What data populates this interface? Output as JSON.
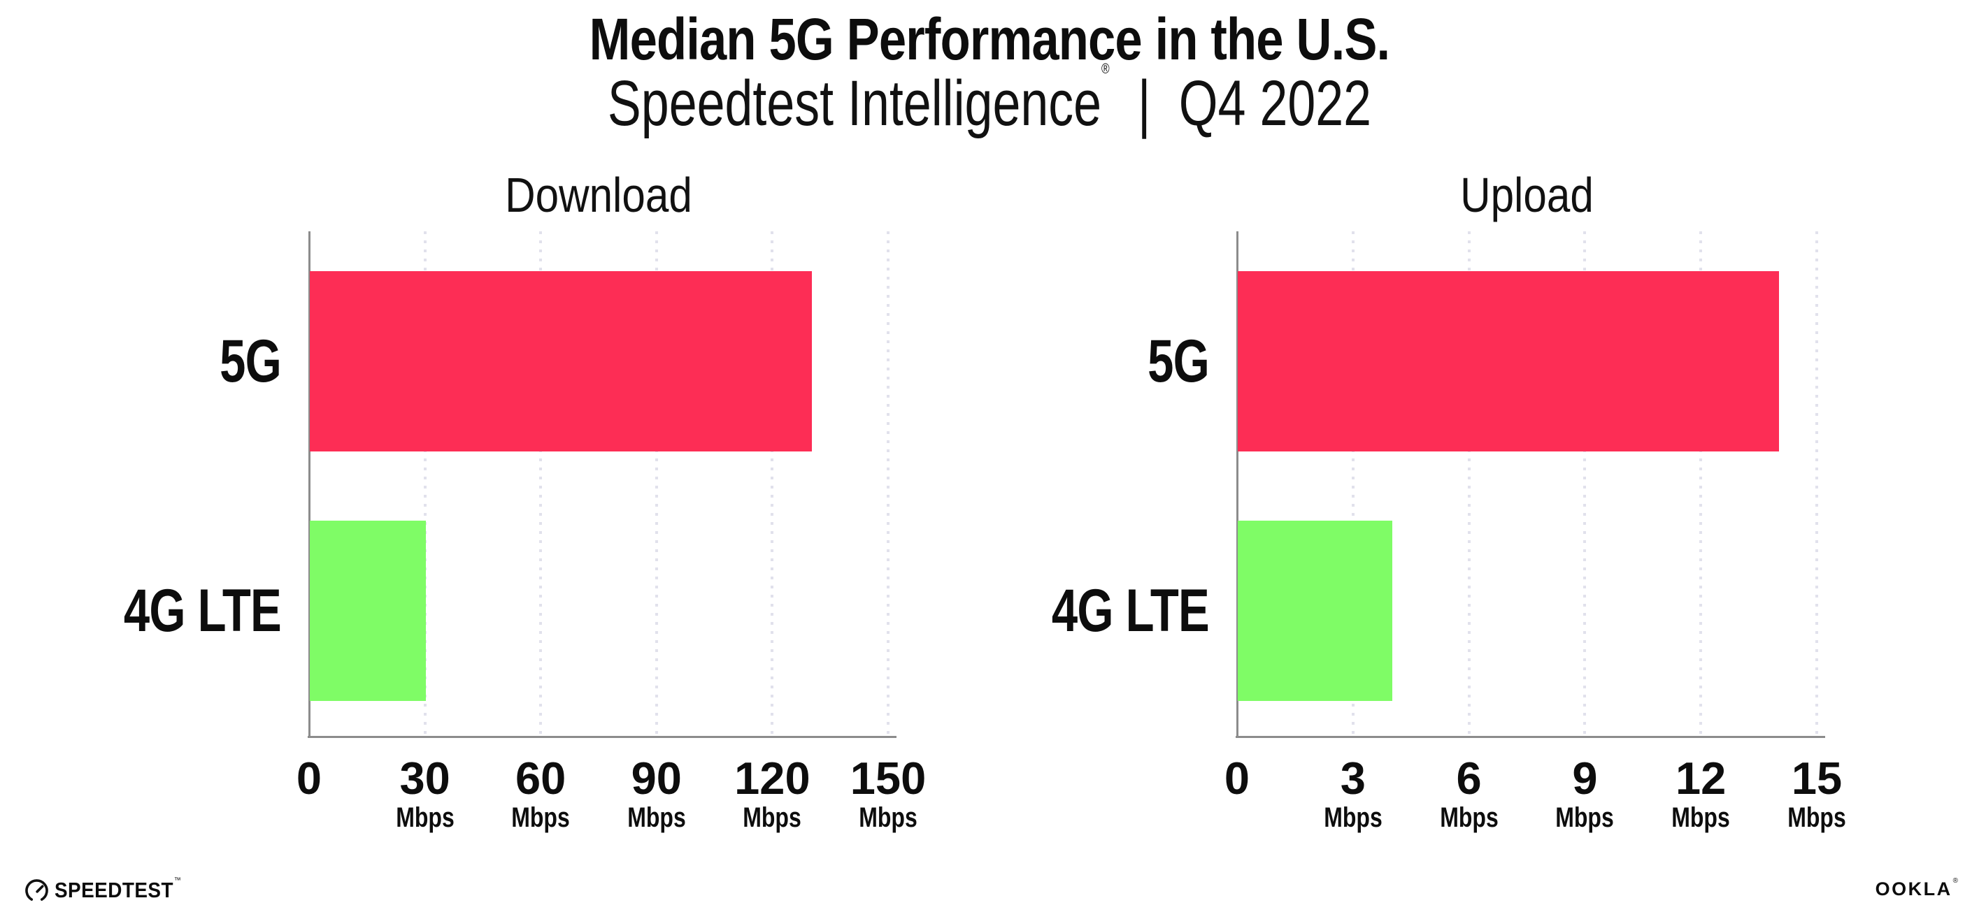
{
  "header": {
    "title": "Median 5G Performance in the U.S.",
    "subtitle": {
      "brand": "Speedtest Intelligence",
      "registered_mark": "®",
      "separator": "|",
      "period": "Q4 2022"
    }
  },
  "chart_data": [
    {
      "type": "bar",
      "orientation": "horizontal",
      "title": "Download",
      "categories": [
        "5G",
        "4G LTE"
      ],
      "values": [
        130,
        30
      ],
      "unit": "Mbps",
      "xlim": [
        0,
        150
      ],
      "xticks": [
        0,
        30,
        60,
        90,
        120,
        150
      ],
      "bar_colors": [
        "#fd2d55",
        "#7ffc66"
      ],
      "grid": "dotted-vertical-at-ticks",
      "legend": "none"
    },
    {
      "type": "bar",
      "orientation": "horizontal",
      "title": "Upload",
      "categories": [
        "5G",
        "4G LTE"
      ],
      "values": [
        14,
        4
      ],
      "unit": "Mbps",
      "xlim": [
        0,
        15
      ],
      "xticks": [
        0,
        3,
        6,
        9,
        12,
        15
      ],
      "bar_colors": [
        "#fd2d55",
        "#7ffc66"
      ],
      "grid": "dotted-vertical-at-ticks",
      "legend": "none"
    }
  ],
  "footer": {
    "speedtest": {
      "label": "SPEEDTEST",
      "mark": "™",
      "icon": "speedtest-gauge-icon"
    },
    "ookla": {
      "label": "OOKLA",
      "mark": "®"
    }
  },
  "style": {
    "bar_red": "#fd2d55",
    "bar_green": "#7ffc66",
    "axis_gray": "#8c8c8c",
    "grid_dot": "#e1e1ec",
    "text": "#0d0d0d",
    "background": "#ffffff"
  }
}
